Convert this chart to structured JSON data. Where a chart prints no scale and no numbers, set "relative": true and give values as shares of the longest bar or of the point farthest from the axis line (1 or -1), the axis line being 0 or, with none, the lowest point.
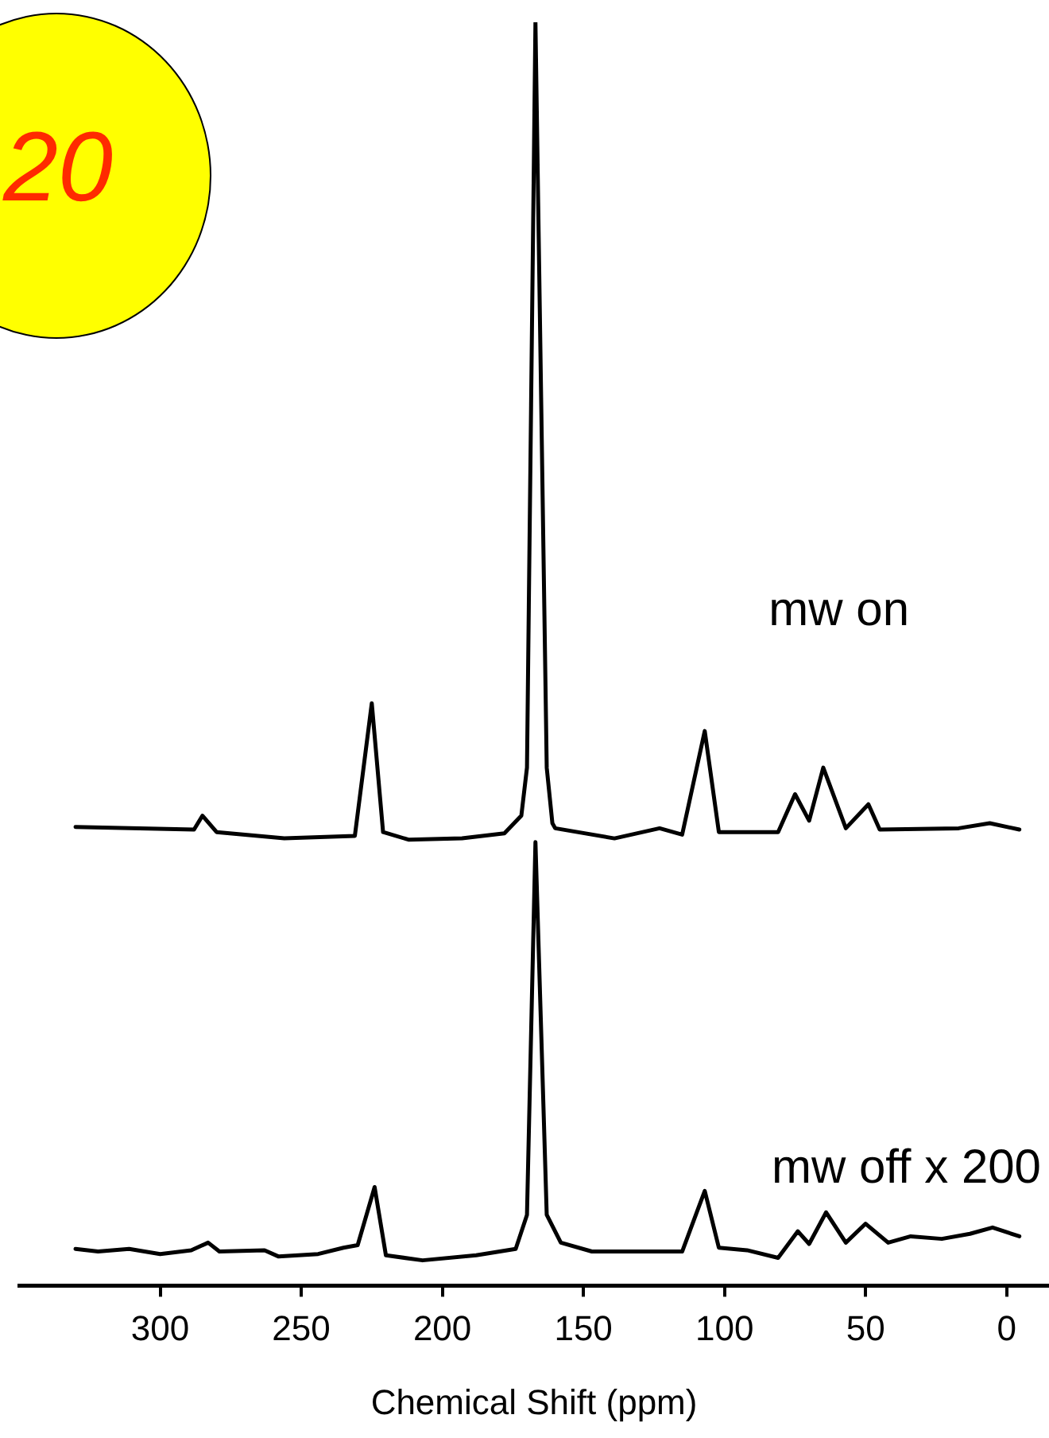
{
  "chart_data": {
    "type": "line",
    "relative": true,
    "xlabel": "Chemical Shift (ppm)",
    "xlim": [
      350,
      -15
    ],
    "xticks": [
      300,
      250,
      200,
      150,
      100,
      50,
      0
    ],
    "grid": false,
    "legend": false,
    "marker": "none",
    "line_style": "solid",
    "annotations": [
      "20"
    ],
    "series": [
      {
        "name": "mw on",
        "color": "#000000",
        "x": [
          330,
          288,
          285,
          280,
          256,
          231,
          225,
          221,
          212,
          193,
          178,
          172,
          170,
          167,
          163,
          161,
          160,
          139,
          123,
          115,
          107,
          102,
          81,
          75,
          70,
          65,
          57,
          49,
          45,
          17,
          6,
          -4.5
        ],
        "values": [
          0.363,
          0.361,
          0.372,
          0.359,
          0.354,
          0.356,
          0.461,
          0.359,
          0.353,
          0.354,
          0.358,
          0.372,
          0.41,
          1.0,
          0.41,
          0.366,
          0.362,
          0.354,
          0.362,
          0.357,
          0.439,
          0.359,
          0.359,
          0.389,
          0.368,
          0.41,
          0.362,
          0.381,
          0.361,
          0.362,
          0.366,
          0.361
        ]
      },
      {
        "name": "mw off x 200",
        "color": "#000000",
        "x": [
          330,
          322,
          311,
          300,
          289,
          283,
          279,
          263,
          258,
          244,
          235,
          230,
          224,
          220,
          207,
          188,
          174,
          170,
          167,
          163,
          158,
          147,
          115,
          107,
          102,
          92,
          81,
          74,
          70,
          64,
          57,
          50,
          42,
          34,
          23,
          13,
          5,
          -4.5
        ],
        "values": [
          0.029,
          0.027,
          0.029,
          0.025,
          0.028,
          0.034,
          0.027,
          0.028,
          0.023,
          0.025,
          0.03,
          0.032,
          0.078,
          0.024,
          0.02,
          0.024,
          0.029,
          0.056,
          0.351,
          0.056,
          0.034,
          0.027,
          0.027,
          0.075,
          0.03,
          0.028,
          0.022,
          0.043,
          0.033,
          0.058,
          0.034,
          0.049,
          0.034,
          0.039,
          0.037,
          0.041,
          0.046,
          0.039
        ]
      }
    ]
  }
}
